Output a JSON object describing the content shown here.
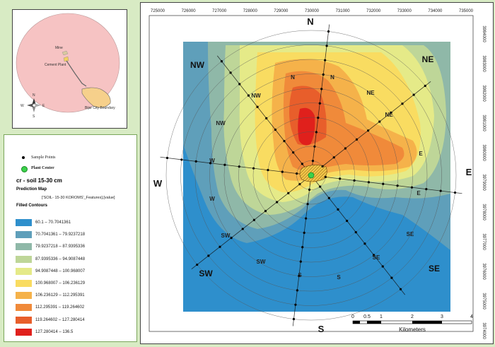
{
  "locator": {
    "labels": {
      "mine": "Mine",
      "cement_plant": "Cement Plant",
      "boundary": "Bijar City Boundary"
    },
    "compass": {
      "n": "N",
      "s": "S",
      "e": "E",
      "w": "W"
    }
  },
  "legend": {
    "sample_points": "Sample Points",
    "plant_center": "Plant Center",
    "layer_title": "cr - soil 15-30 cm",
    "prediction_map": "Prediction Map",
    "field_ref": "['SOIL- 15-30 KOROMS'_Features].[value]",
    "filled_contours": "Filled Contours",
    "classes": [
      {
        "label": "60.1 – 70.7041361",
        "color": "#2e8fcc"
      },
      {
        "label": "70.7041361 – 79.9237218",
        "color": "#5f9fba"
      },
      {
        "label": "79.9237218 – 87.9395336",
        "color": "#8fb8a8"
      },
      {
        "label": "87.9395336 – 94.9087448",
        "color": "#bed698"
      },
      {
        "label": "94.9087448 – 100.968007",
        "color": "#e5ea88"
      },
      {
        "label": "100.968007 – 106.236129",
        "color": "#f9dc61"
      },
      {
        "label": "106.236129 – 112.295391",
        "color": "#f5b24a"
      },
      {
        "label": "112.295391 – 119.264602",
        "color": "#f08a3a"
      },
      {
        "label": "119.264602 – 127.280414",
        "color": "#e85e2b"
      },
      {
        "label": "127.280414 – 136.5",
        "color": "#e0201c"
      }
    ]
  },
  "map": {
    "x_ticks": [
      "725000",
      "726000",
      "727000",
      "728000",
      "729000",
      "730000",
      "731000",
      "732000",
      "733000",
      "734000",
      "735000"
    ],
    "y_ticks": [
      "3984000",
      "3983000",
      "3982000",
      "3981000",
      "3980000",
      "3979000",
      "3978000",
      "3977000",
      "3976000",
      "3975000",
      "3974000"
    ],
    "directions": {
      "N": "N",
      "S": "S",
      "E": "E",
      "W": "W",
      "NE": "NE",
      "NW": "NW",
      "SE": "SE",
      "SW": "SW"
    },
    "scale": {
      "ticks": [
        "0",
        "0.5",
        "1",
        "2",
        "3",
        "4"
      ],
      "unit": "Kilometers"
    }
  }
}
